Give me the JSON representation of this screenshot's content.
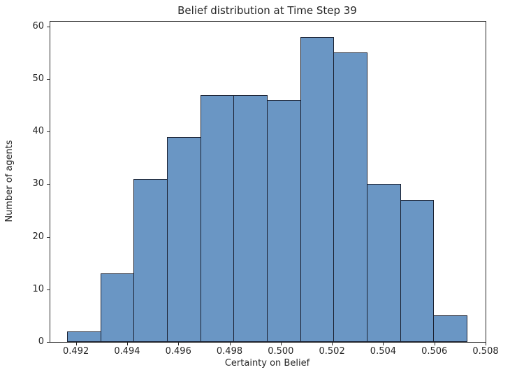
{
  "chart_data": {
    "type": "bar",
    "subtype": "histogram",
    "title": "Belief distribution at Time Step 39",
    "xlabel": "Certainty on Belief",
    "ylabel": "Number of agents",
    "bin_edges": [
      0.49166,
      0.49296,
      0.49426,
      0.49556,
      0.49686,
      0.49816,
      0.49946,
      0.50076,
      0.50206,
      0.50336,
      0.50466,
      0.50596,
      0.50726
    ],
    "counts": [
      2,
      13,
      31,
      39,
      47,
      47,
      46,
      58,
      55,
      30,
      27,
      5
    ],
    "xlim": [
      0.491,
      0.508
    ],
    "ylim": [
      0,
      60.9
    ],
    "xticks": [
      0.492,
      0.494,
      0.496,
      0.498,
      0.5,
      0.502,
      0.504,
      0.506,
      0.508
    ],
    "xtick_labels": [
      "0.492",
      "0.494",
      "0.496",
      "0.498",
      "0.500",
      "0.502",
      "0.504",
      "0.506",
      "0.508"
    ],
    "yticks": [
      0,
      10,
      20,
      30,
      40,
      50,
      60
    ],
    "ytick_labels": [
      "0",
      "10",
      "20",
      "30",
      "40",
      "50",
      "60"
    ],
    "bar_color": "#6A96C4",
    "bar_edge_color": "#1A2030",
    "axis_color": "#262626",
    "background_color": "#FFFFFF",
    "grid": false,
    "legend": null
  }
}
